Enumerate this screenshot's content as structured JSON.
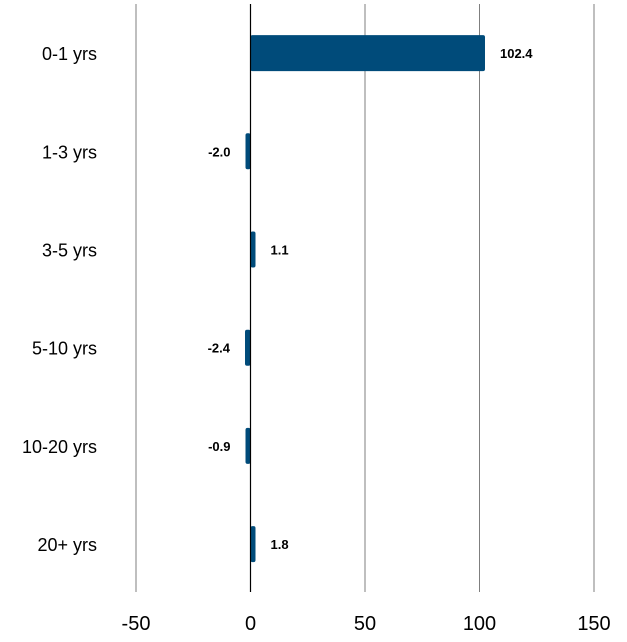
{
  "chart_data": {
    "type": "bar",
    "orientation": "horizontal",
    "categories": [
      "0-1 yrs",
      "1-3 yrs",
      "3-5 yrs",
      "5-10 yrs",
      "10-20 yrs",
      "20+ yrs"
    ],
    "values": [
      102.4,
      -2.0,
      1.1,
      -2.4,
      -0.9,
      1.8
    ],
    "data_labels": [
      "102.4",
      "-2.0",
      "1.1",
      "-2.4",
      "-0.9",
      "1.8"
    ],
    "title": "",
    "xlabel": "",
    "ylabel": "",
    "xlim": [
      -50,
      150
    ],
    "xticks": [
      -50,
      0,
      50,
      100,
      150
    ],
    "xtick_labels": [
      "-50",
      "0",
      "50",
      "100",
      "150"
    ],
    "grid": "vertical",
    "legend": "none",
    "bar_color": "#004b7a"
  }
}
